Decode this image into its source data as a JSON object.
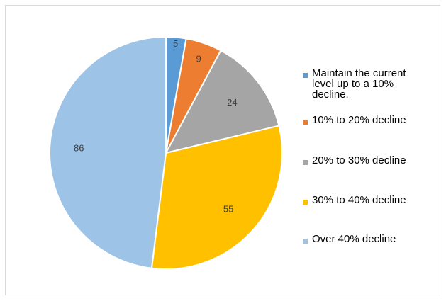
{
  "chart_data": {
    "type": "pie",
    "categories": [
      "Maintain the current level up to a 10% decline.",
      "10% to 20% decline",
      "20% to 30% decline",
      "30% to 40% decline",
      "Over 40% decline"
    ],
    "values": [
      5,
      9,
      24,
      55,
      86
    ],
    "labels": [
      "5",
      "9",
      "24",
      "55",
      "86"
    ],
    "colors": [
      "#5b9bd5",
      "#ed7d31",
      "#a5a5a5",
      "#ffc000",
      "#9dc3e6"
    ],
    "legend": [
      [
        "Maintain the current",
        "level up to a 10%",
        "decline."
      ],
      [
        "10% to 20% decline"
      ],
      [
        "20% to 30% decline"
      ],
      [
        "30% to 40% decline"
      ],
      [
        "Over 40% decline"
      ]
    ],
    "legend_position": "right",
    "title": ""
  }
}
